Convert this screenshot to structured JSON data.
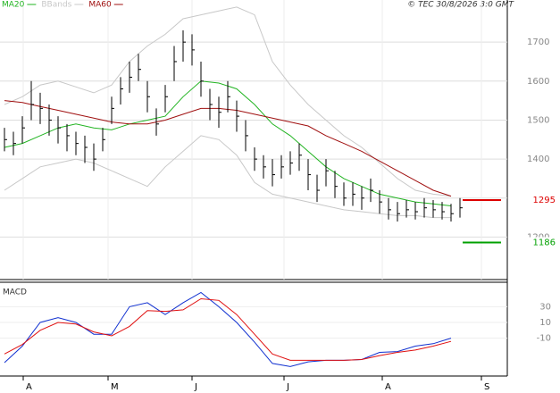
{
  "chart_data": [
    {
      "type": "ohlc",
      "credit": "© TEC 30/8/2026 3:0 GMT",
      "xlim": [
        -0.5,
        56.3
      ],
      "xticks": [
        2.1,
        11.6,
        21,
        31.3,
        42.3,
        53.4
      ],
      "ylim": [
        1091,
        1808
      ],
      "yticks": [
        1200,
        1300,
        1400,
        1500,
        1600,
        1700
      ],
      "grid": true,
      "bars": {
        "x": [
          0,
          1,
          2,
          3,
          4,
          5,
          6,
          7,
          8,
          9,
          10,
          11,
          12,
          13,
          14,
          15,
          16,
          17,
          18,
          19,
          20,
          21,
          22,
          23,
          24,
          25,
          26,
          27,
          28,
          29,
          30,
          31,
          32,
          33,
          34,
          35,
          36,
          37,
          38,
          39,
          40,
          41,
          42,
          43,
          44,
          45,
          46,
          47,
          48,
          49,
          50,
          51
        ],
        "high": [
          1480,
          1470,
          1510,
          1600,
          1570,
          1540,
          1510,
          1490,
          1470,
          1460,
          1440,
          1480,
          1560,
          1610,
          1650,
          1670,
          1600,
          1530,
          1590,
          1690,
          1730,
          1720,
          1650,
          1580,
          1560,
          1600,
          1550,
          1500,
          1430,
          1410,
          1400,
          1410,
          1420,
          1440,
          1400,
          1360,
          1400,
          1370,
          1340,
          1340,
          1330,
          1350,
          1320,
          1300,
          1290,
          1295,
          1290,
          1300,
          1295,
          1290,
          1285,
          1300
        ],
        "low": [
          1420,
          1410,
          1440,
          1500,
          1490,
          1460,
          1440,
          1420,
          1410,
          1390,
          1370,
          1420,
          1490,
          1540,
          1570,
          1600,
          1520,
          1460,
          1520,
          1600,
          1650,
          1640,
          1560,
          1500,
          1480,
          1520,
          1470,
          1420,
          1370,
          1350,
          1330,
          1350,
          1360,
          1370,
          1320,
          1290,
          1330,
          1300,
          1280,
          1280,
          1270,
          1290,
          1260,
          1245,
          1240,
          1250,
          1245,
          1250,
          1250,
          1245,
          1240,
          1250
        ],
        "close": [
          1450,
          1440,
          1480,
          1540,
          1530,
          1500,
          1480,
          1460,
          1440,
          1430,
          1400,
          1450,
          1530,
          1580,
          1610,
          1630,
          1560,
          1490,
          1560,
          1650,
          1700,
          1680,
          1600,
          1540,
          1520,
          1560,
          1510,
          1460,
          1400,
          1380,
          1360,
          1380,
          1390,
          1410,
          1360,
          1320,
          1370,
          1330,
          1300,
          1310,
          1300,
          1320,
          1290,
          1270,
          1260,
          1270,
          1265,
          1275,
          1270,
          1265,
          1260,
          1275
        ],
        "color": "#000000"
      },
      "series": [
        {
          "name": "MA20",
          "color": "#22b422",
          "x": [
            0,
            2,
            4,
            6,
            8,
            10,
            12,
            14,
            16,
            18,
            20,
            22,
            24,
            26,
            28,
            30,
            32,
            34,
            36,
            38,
            40,
            42,
            44,
            46,
            48,
            50
          ],
          "values": [
            1430,
            1440,
            1460,
            1480,
            1490,
            1480,
            1475,
            1490,
            1500,
            1510,
            1560,
            1600,
            1595,
            1580,
            1540,
            1490,
            1460,
            1420,
            1380,
            1350,
            1330,
            1310,
            1300,
            1290,
            1285,
            1280
          ]
        },
        {
          "name": "BBands",
          "color": "#c8c8c8",
          "x": [
            0,
            2,
            4,
            6,
            8,
            10,
            12,
            14,
            16,
            18,
            20,
            22,
            24,
            26,
            28,
            30,
            32,
            34,
            36,
            38,
            40,
            42,
            44,
            46,
            48,
            50
          ],
          "values": [
            1540,
            1560,
            1590,
            1600,
            1585,
            1570,
            1590,
            1650,
            1690,
            1720,
            1760,
            1770,
            1780,
            1790,
            1770,
            1650,
            1590,
            1540,
            1500,
            1460,
            1430,
            1390,
            1350,
            1320,
            1310,
            1305
          ],
          "lower": [
            1320,
            1350,
            1380,
            1390,
            1400,
            1390,
            1370,
            1350,
            1330,
            1380,
            1420,
            1460,
            1450,
            1410,
            1340,
            1310,
            1300,
            1290,
            1280,
            1270,
            1265,
            1260,
            1255,
            1255,
            1250,
            1250
          ]
        },
        {
          "name": "MA60",
          "color": "#a01010",
          "x": [
            0,
            2,
            4,
            6,
            8,
            10,
            12,
            14,
            16,
            18,
            20,
            22,
            24,
            26,
            28,
            30,
            32,
            34,
            36,
            38,
            40,
            42,
            44,
            46,
            48,
            50
          ],
          "values": [
            1550,
            1545,
            1535,
            1525,
            1515,
            1505,
            1495,
            1490,
            1490,
            1500,
            1515,
            1530,
            1530,
            1525,
            1515,
            1505,
            1495,
            1485,
            1460,
            1440,
            1420,
            1395,
            1370,
            1345,
            1320,
            1305
          ]
        }
      ],
      "levels": [
        {
          "value": 1295,
          "color": "#dd0000"
        },
        {
          "value": 1186,
          "color": "#00a000"
        }
      ]
    },
    {
      "type": "line",
      "title": "MACD",
      "xlim": [
        -0.5,
        56.3
      ],
      "xticks": [
        {
          "value": 2.1,
          "label": "A"
        },
        {
          "value": 11.6,
          "label": "M"
        },
        {
          "value": 21,
          "label": "J"
        },
        {
          "value": 31.3,
          "label": "J"
        },
        {
          "value": 42.3,
          "label": "A"
        },
        {
          "value": 53.4,
          "label": "S"
        }
      ],
      "ylim": [
        -58,
        61
      ],
      "yticks": [
        30,
        10,
        -10
      ],
      "series": [
        {
          "color": "#1030d0",
          "x": [
            0,
            2,
            4,
            6,
            8,
            10,
            12,
            14,
            16,
            18,
            20,
            22,
            24,
            26,
            28,
            30,
            32,
            34,
            36,
            38,
            40,
            42,
            44,
            46,
            48,
            50
          ],
          "values": [
            -41,
            -20,
            10,
            16,
            10,
            -5,
            -5,
            30,
            35,
            20,
            35,
            48,
            30,
            10,
            -15,
            -42,
            -46,
            -40,
            -38,
            -38,
            -37,
            -28,
            -27,
            -20,
            -17,
            -10
          ]
        },
        {
          "color": "#e01010",
          "x": [
            0,
            2,
            4,
            6,
            8,
            10,
            12,
            14,
            16,
            18,
            20,
            22,
            24,
            26,
            28,
            30,
            32,
            34,
            36,
            38,
            40,
            42,
            44,
            46,
            48,
            50
          ],
          "values": [
            -30,
            -18,
            0,
            10,
            8,
            -2,
            -7,
            5,
            25,
            24,
            26,
            40,
            38,
            20,
            -5,
            -30,
            -38,
            -38,
            -38,
            -38,
            -37,
            -32,
            -28,
            -25,
            -20,
            -14
          ]
        }
      ]
    }
  ]
}
